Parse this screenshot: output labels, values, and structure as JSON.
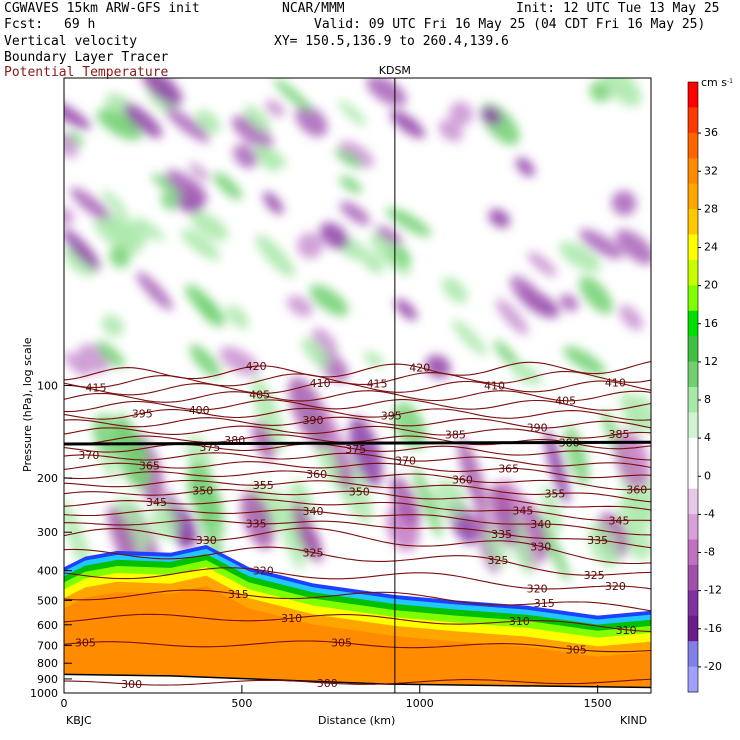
{
  "header": {
    "model": "CGWAVES 15km ARW-GFS init",
    "org": "NCAR/MMM",
    "init": "Init: 12 UTC Tue 13 May 25",
    "fcst_label": "Fcst:",
    "fcst_value": "69 h",
    "valid": "Valid: 09 UTC Fri 16 May 25 (04 CDT Fri 16 May 25)",
    "field1": "Vertical velocity",
    "xy": "XY= 150.5,136.9 to 260.4,139.6",
    "field2": "Boundary Layer Tracer",
    "field3": "Potential Temperature"
  },
  "chart_data": {
    "type": "heatmap",
    "title": "KDSM",
    "xlabel": "Distance (km)",
    "ylabel": "Pressure (hPa), log scale",
    "xlim": [
      0,
      1650
    ],
    "ylim": [
      1000,
      10
    ],
    "x_ticks": [
      0,
      500,
      1000,
      1500
    ],
    "y_ticks": [
      100,
      200,
      300,
      400,
      500,
      600,
      700,
      800,
      900,
      1000
    ],
    "start_station": "KBJC",
    "end_station": "KIND",
    "marker_station": "KDSM",
    "marker_x_km": 930,
    "colorbar": {
      "unit": "cm s",
      "unit_exp": "-1",
      "ticks": [
        36,
        32,
        28,
        24,
        20,
        16,
        12,
        8,
        4,
        0,
        -4,
        -8,
        -12,
        -16,
        -20
      ],
      "colors": [
        "#ff0000",
        "#ff3a00",
        "#ff6400",
        "#ff8a00",
        "#ffa500",
        "#ffc800",
        "#ffff00",
        "#c8ff00",
        "#80ff00",
        "#00e000",
        "#40c040",
        "#70d070",
        "#a8e8a8",
        "#d0f4d0",
        "#ffffff",
        "#ffffff",
        "#e8c8e8",
        "#d8a0d8",
        "#c070c0",
        "#a050a8",
        "#8030a0",
        "#6a1a8a",
        "#8080e8",
        "#a0a0ff"
      ]
    },
    "theta_contours": [
      {
        "value": 300,
        "label_x": [
          190,
          740
        ]
      },
      {
        "value": 305,
        "label_x": [
          60,
          780,
          1440
        ]
      },
      {
        "value": 310,
        "label_x": [
          640,
          1280,
          1580
        ]
      },
      {
        "value": 315,
        "label_x": [
          490,
          1350
        ]
      },
      {
        "value": 320,
        "label_x": [
          560,
          1330,
          1550
        ]
      },
      {
        "value": 325,
        "label_x": [
          700,
          1220,
          1490
        ]
      },
      {
        "value": 330,
        "label_x": [
          400,
          1340
        ]
      },
      {
        "value": 335,
        "label_x": [
          540,
          1230,
          1500
        ]
      },
      {
        "value": 340,
        "label_x": [
          700,
          1340
        ]
      },
      {
        "value": 345,
        "label_x": [
          260,
          1290,
          1560
        ]
      },
      {
        "value": 350,
        "label_x": [
          390,
          830
        ]
      },
      {
        "value": 355,
        "label_x": [
          560,
          1380
        ]
      },
      {
        "value": 360,
        "label_x": [
          710,
          1120,
          1610
        ]
      },
      {
        "value": 365,
        "label_x": [
          240,
          1250
        ]
      },
      {
        "value": 370,
        "label_x": [
          70,
          960
        ]
      },
      {
        "value": 375,
        "label_x": [
          410,
          820
        ]
      },
      {
        "value": 380,
        "label_x": [
          480,
          1420
        ]
      },
      {
        "value": 385,
        "label_x": [
          1100,
          1560
        ]
      },
      {
        "value": 390,
        "label_x": [
          700,
          1330
        ]
      },
      {
        "value": 395,
        "label_x": [
          220,
          920
        ]
      },
      {
        "value": 400,
        "label_x": [
          380
        ]
      },
      {
        "value": 405,
        "label_x": [
          550,
          1410
        ]
      },
      {
        "value": 410,
        "label_x": [
          720,
          1210,
          1550
        ]
      },
      {
        "value": 415,
        "label_x": [
          90,
          880
        ]
      },
      {
        "value": 420,
        "label_x": [
          540,
          1000
        ]
      }
    ]
  }
}
